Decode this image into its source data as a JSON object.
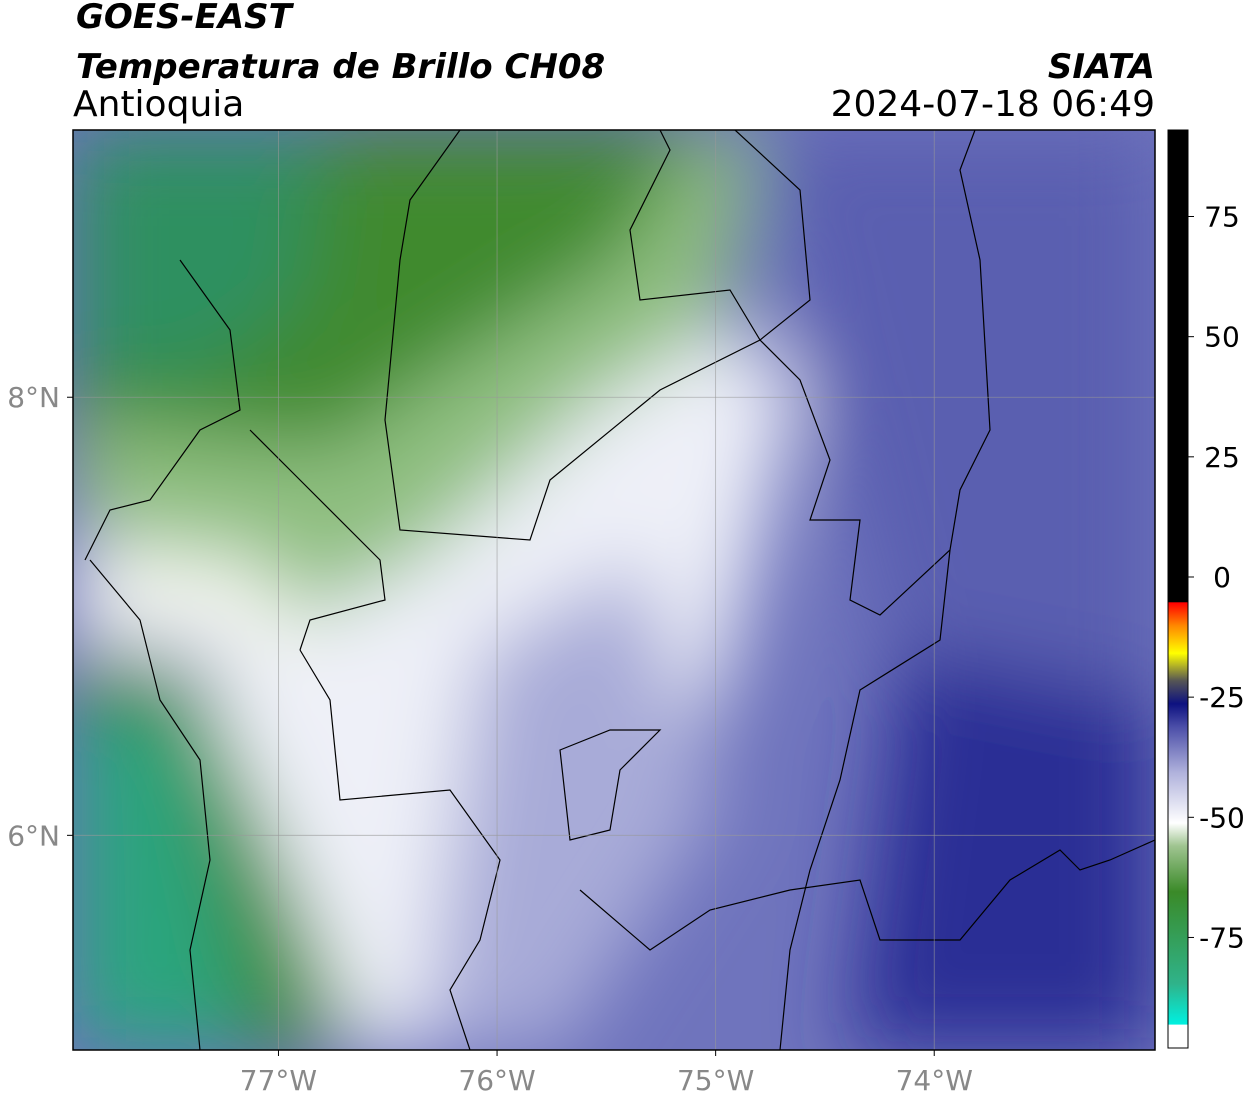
{
  "header": {
    "title": "GOES-EAST",
    "subtitle": "Temperatura de Brillo CH08",
    "region": "Antioquia",
    "source": "SIATA",
    "datetime": "2024-07-18 06:49"
  },
  "map": {
    "xlim": [
      -77.94,
      -72.99
    ],
    "ylim": [
      5.02,
      9.22
    ],
    "xticks": [
      {
        "value": -77,
        "label": "77°W"
      },
      {
        "value": -76,
        "label": "76°W"
      },
      {
        "value": -75,
        "label": "75°W"
      },
      {
        "value": -74,
        "label": "74°W"
      }
    ],
    "yticks": [
      {
        "value": 8,
        "label": "8°N"
      },
      {
        "value": 6,
        "label": "6°N"
      }
    ],
    "grid": true
  },
  "colorbar": {
    "lim": [
      -98,
      93
    ],
    "ticks": [
      75,
      50,
      25,
      0,
      -25,
      -50,
      -75
    ]
  }
}
